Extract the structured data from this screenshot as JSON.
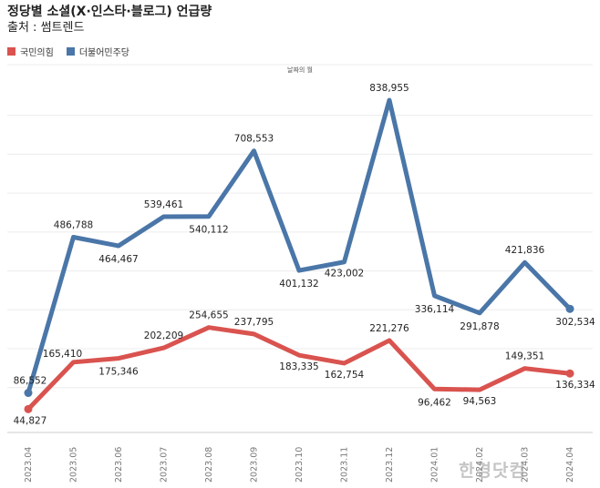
{
  "header": {
    "title": "정당별 소셜(X·인스타·블로그) 언급량",
    "subtitle": "출처 : 썸트렌드"
  },
  "watermark": "한경닷컴",
  "colors": {
    "ppp": "#d9534f",
    "dp": "#4a76a8",
    "grid": "#ececec",
    "axis": "#cccccc"
  },
  "chart_data": {
    "type": "line",
    "xlabel": "날짜의 월",
    "ylabel": "",
    "categories": [
      "2023.04",
      "2023.05",
      "2023.06",
      "2023.07",
      "2023.08",
      "2023.09",
      "2023.10",
      "2023.11",
      "2023.12",
      "2024.01",
      "2024.02",
      "2024.03",
      "2024.04"
    ],
    "ylim": [
      0,
      900000
    ],
    "grid": true,
    "legend_position": "top-left",
    "series": [
      {
        "name": "국민의힘",
        "color": "#d9534f",
        "values": [
          44827,
          165410,
          175346,
          202209,
          254655,
          237795,
          183335,
          162754,
          221276,
          96462,
          94563,
          149351,
          136334
        ],
        "labels": [
          "44,827",
          "165,410",
          "175,346",
          "202,209",
          "254,655",
          "237,795",
          "183,335",
          "162,754",
          "221,276",
          "96,462",
          "94,563",
          "149,351",
          "136,334"
        ]
      },
      {
        "name": "더불어민주당",
        "color": "#4a76a8",
        "values": [
          86552,
          486788,
          464467,
          539461,
          540112,
          708553,
          401132,
          423002,
          838955,
          336114,
          291878,
          421836,
          302534
        ],
        "labels": [
          "86,552",
          "486,788",
          "464,467",
          "539,461",
          "540,112",
          "708,553",
          "401,132",
          "423,002",
          "838,955",
          "336,114",
          "291,878",
          "421,836",
          "302,534"
        ]
      }
    ]
  }
}
